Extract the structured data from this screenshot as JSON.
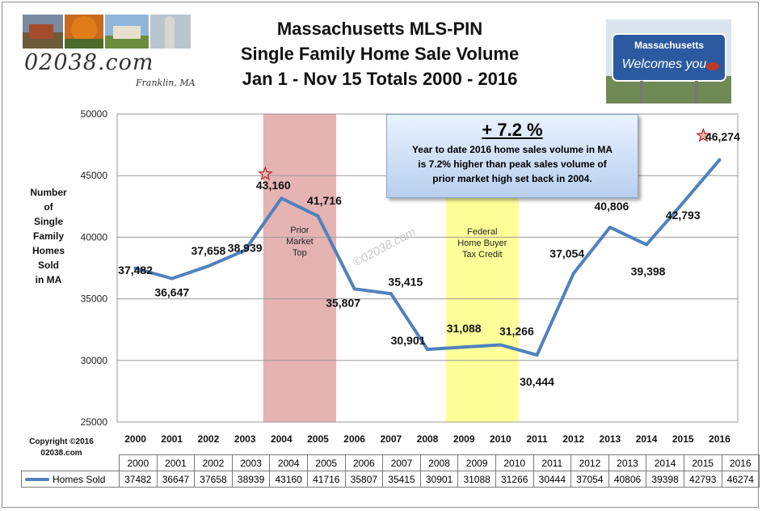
{
  "title": {
    "line1": "Massachusetts MLS-PIN",
    "line2": "Single Family Home Sale Volume",
    "line3": "Jan 1 - Nov 15 Totals  2000 - 2016"
  },
  "logo": {
    "url_text": "02038.com",
    "town_text": "Franklin, MA"
  },
  "sign": {
    "line1": "Massachusetts",
    "line2": "Welcomes you"
  },
  "y_axis_label": [
    "Number",
    "of",
    "Single",
    "Family",
    "Homes",
    "Sold",
    "in MA"
  ],
  "copyright": {
    "line1": "Copyright ©2016",
    "line2": "02038.com"
  },
  "callout": {
    "headline": "+ 7.2 %",
    "line1": "Year to date 2016  home sales volume in MA",
    "line2": "is 7.2% higher than  peak sales volume of",
    "line3": "prior market  high set back in 2004."
  },
  "watermark": "©02038.com",
  "bands": [
    {
      "label_lines": [
        "Prior",
        "Market",
        "Top"
      ],
      "from": "2004",
      "to": "2005",
      "color": "#e6b3b3"
    },
    {
      "label_lines": [
        "Federal",
        "Home Buyer",
        "Tax Credit"
      ],
      "from": "2009",
      "to": "2010",
      "color": "#ffff99"
    }
  ],
  "chart_data": {
    "type": "line",
    "categories": [
      "2000",
      "2001",
      "2002",
      "2003",
      "2004",
      "2005",
      "2006",
      "2007",
      "2008",
      "2009",
      "2010",
      "2011",
      "2012",
      "2013",
      "2014",
      "2015",
      "2016"
    ],
    "series": [
      {
        "name": "Homes Sold",
        "values": [
          37482,
          36647,
          37658,
          38939,
          43160,
          41716,
          35807,
          35415,
          30901,
          31088,
          31266,
          30444,
          37054,
          40806,
          39398,
          42793,
          46274
        ],
        "color": "#4f81bd"
      }
    ],
    "data_labels": [
      "37,482",
      "36,647",
      "37,658",
      "38,939",
      "43,160",
      "41,716",
      "35,807",
      "35,415",
      "30,901",
      "31,088",
      "31,266",
      "30,444",
      "37,054",
      "40,806",
      "39,398",
      "42,793",
      "46,274"
    ],
    "y_ticks": [
      "25000",
      "30000",
      "35000",
      "40000",
      "45000",
      "50000"
    ],
    "ylim": [
      25000,
      50000
    ],
    "grid": true,
    "star_markers": [
      "2004",
      "2016"
    ],
    "legend": "data-table"
  }
}
